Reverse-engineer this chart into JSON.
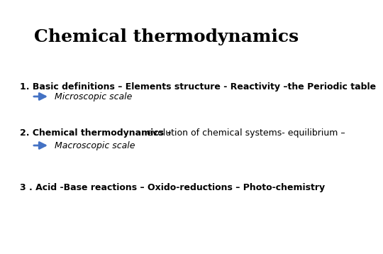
{
  "title": "Chemical thermodynamics",
  "title_fontsize": 18,
  "title_fontweight": "bold",
  "background_color": "#ffffff",
  "line1_bold": "1. Basic definitions – Elements structure - Reactivity –the Periodic table",
  "line1_fontsize": 9,
  "arrow_color": "#4472C4",
  "scale1_text": "Microscopic scale",
  "scale1_fontsize": 9,
  "line2_bold": "2. Chemical thermodynamics –",
  "line2_normal": " evolution of chemical systems- equilibrium –",
  "line2_fontsize": 9,
  "scale2_text": "Macroscopic scale",
  "scale2_fontsize": 9,
  "line3_text": "3 . Acid -Base reactions – Oxido-reductions – Photo-chemistry",
  "line3_fontsize": 9
}
